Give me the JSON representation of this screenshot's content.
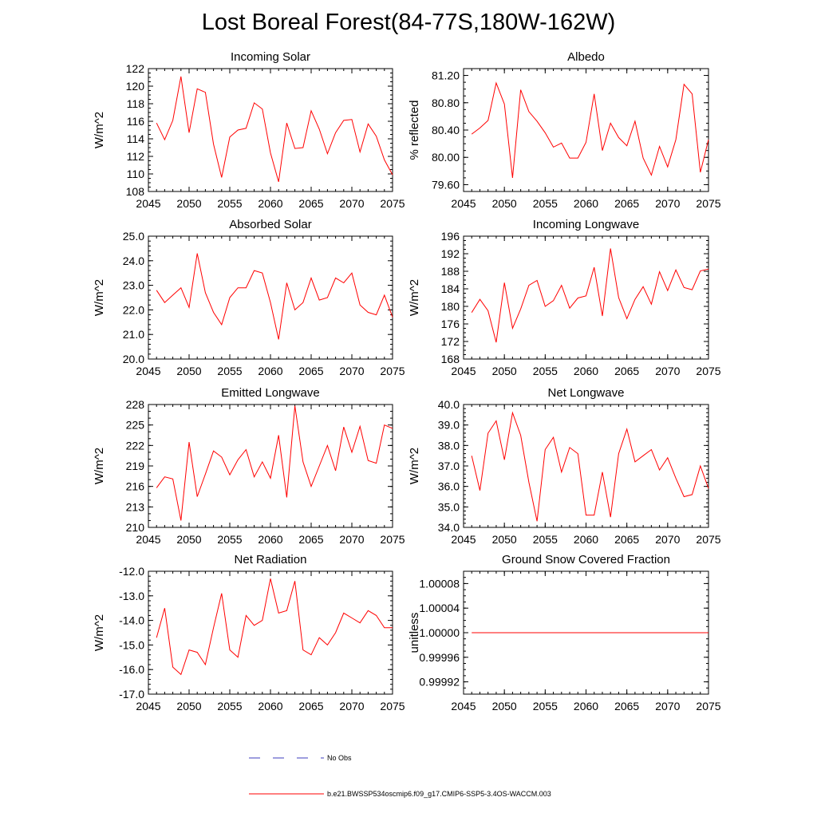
{
  "figure_title": "Lost Boreal Forest(84-77S,180W-162W)",
  "colors": {
    "model": "#ff0000",
    "obs": "#3c3cbe",
    "axis": "#000000"
  },
  "legend": {
    "obs_label": "No Obs",
    "model_label": "b.e21.BWSSP534oscmip6.f09_g17.CMIP6-SSP5-3.4OS-WACCM.003"
  },
  "chart_data": [
    {
      "id": "incoming-solar",
      "type": "line",
      "title": "Incoming Solar",
      "ylabel": "W/m^2",
      "xlim": [
        2045,
        2075
      ],
      "ylim": [
        108,
        122
      ],
      "xticks": [
        2045,
        2050,
        2055,
        2060,
        2065,
        2070,
        2075
      ],
      "xminor": 1,
      "yticks": [
        108,
        110,
        112,
        114,
        116,
        118,
        120,
        122
      ],
      "yticklabels": [
        "108",
        "110",
        "112",
        "114",
        "116",
        "118",
        "120",
        "122"
      ],
      "yminor": 0.5,
      "series": [
        {
          "name": "b.e21.BWSSP534oscmip6.f09_g17.CMIP6-SSP5-3.4OS-WACCM.003",
          "x": [
            2046,
            2047,
            2048,
            2049,
            2050,
            2051,
            2052,
            2053,
            2054,
            2055,
            2056,
            2057,
            2058,
            2059,
            2060,
            2061,
            2062,
            2063,
            2064,
            2065,
            2066,
            2067,
            2068,
            2069,
            2070,
            2071,
            2072,
            2073,
            2074,
            2075
          ],
          "values": [
            115.8,
            113.9,
            116.1,
            121.1,
            114.7,
            119.7,
            119.3,
            113.4,
            109.6,
            114.2,
            115.0,
            115.2,
            118.1,
            117.4,
            112.4,
            109.1,
            115.8,
            112.9,
            113.0,
            117.2,
            115.1,
            112.3,
            114.7,
            116.1,
            116.2,
            112.5,
            115.7,
            114.3,
            111.6,
            109.9
          ]
        }
      ]
    },
    {
      "id": "albedo",
      "type": "line",
      "title": "Albedo",
      "ylabel": "% reflected",
      "xlim": [
        2045,
        2075
      ],
      "ylim": [
        79.5,
        81.3
      ],
      "xticks": [
        2045,
        2050,
        2055,
        2060,
        2065,
        2070,
        2075
      ],
      "xminor": 1,
      "yticks": [
        79.6,
        80.0,
        80.4,
        80.8,
        81.2
      ],
      "yticklabels": [
        "79.60",
        "80.00",
        "80.40",
        "80.80",
        "81.20"
      ],
      "yminor": 0.1,
      "series": [
        {
          "name": "b.e21.BWSSP534oscmip6.f09_g17.CMIP6-SSP5-3.4OS-WACCM.003",
          "x": [
            2046,
            2047,
            2048,
            2049,
            2050,
            2051,
            2052,
            2053,
            2054,
            2055,
            2056,
            2057,
            2058,
            2059,
            2060,
            2061,
            2062,
            2063,
            2064,
            2065,
            2066,
            2067,
            2068,
            2069,
            2070,
            2071,
            2072,
            2073,
            2074,
            2075
          ],
          "values": [
            80.34,
            80.43,
            80.54,
            81.09,
            80.78,
            79.7,
            80.99,
            80.67,
            80.53,
            80.36,
            80.15,
            80.21,
            79.99,
            79.99,
            80.22,
            80.93,
            80.1,
            80.5,
            80.29,
            80.17,
            80.53,
            79.99,
            79.74,
            80.16,
            79.86,
            80.26,
            81.07,
            80.93,
            79.78,
            80.26
          ]
        }
      ]
    },
    {
      "id": "absorbed-solar",
      "type": "line",
      "title": "Absorbed Solar",
      "ylabel": "W/m^2",
      "xlim": [
        2045,
        2075
      ],
      "ylim": [
        20.0,
        25.0
      ],
      "xticks": [
        2045,
        2050,
        2055,
        2060,
        2065,
        2070,
        2075
      ],
      "xminor": 1,
      "yticks": [
        20,
        21,
        22,
        23,
        24,
        25
      ],
      "yticklabels": [
        "20.0",
        "21.0",
        "22.0",
        "23.0",
        "24.0",
        "25.0"
      ],
      "yminor": 0.2,
      "series": [
        {
          "name": "b.e21.BWSSP534oscmip6.f09_g17.CMIP6-SSP5-3.4OS-WACCM.003",
          "x": [
            2046,
            2047,
            2048,
            2049,
            2050,
            2051,
            2052,
            2053,
            2054,
            2055,
            2056,
            2057,
            2058,
            2059,
            2060,
            2061,
            2062,
            2063,
            2064,
            2065,
            2066,
            2067,
            2068,
            2069,
            2070,
            2071,
            2072,
            2073,
            2074,
            2075
          ],
          "values": [
            22.8,
            22.3,
            22.6,
            22.9,
            22.1,
            24.3,
            22.7,
            21.9,
            21.4,
            22.5,
            22.9,
            22.9,
            23.6,
            23.5,
            22.3,
            20.8,
            23.1,
            22.0,
            22.3,
            23.3,
            22.4,
            22.5,
            23.3,
            23.1,
            23.5,
            22.2,
            21.9,
            21.8,
            22.6,
            21.7
          ]
        }
      ]
    },
    {
      "id": "incoming-longwave",
      "type": "line",
      "title": "Incoming Longwave",
      "ylabel": "W/m^2",
      "xlim": [
        2045,
        2075
      ],
      "ylim": [
        168,
        196
      ],
      "xticks": [
        2045,
        2050,
        2055,
        2060,
        2065,
        2070,
        2075
      ],
      "xminor": 1,
      "yticks": [
        168,
        172,
        176,
        180,
        184,
        188,
        192,
        196
      ],
      "yticklabels": [
        "168",
        "172",
        "176",
        "180",
        "184",
        "188",
        "192",
        "196"
      ],
      "yminor": 1,
      "series": [
        {
          "name": "b.e21.BWSSP534oscmip6.f09_g17.CMIP6-SSP5-3.4OS-WACCM.003",
          "x": [
            2046,
            2047,
            2048,
            2049,
            2050,
            2051,
            2052,
            2053,
            2054,
            2055,
            2056,
            2057,
            2058,
            2059,
            2060,
            2061,
            2062,
            2063,
            2064,
            2065,
            2066,
            2067,
            2068,
            2069,
            2070,
            2071,
            2072,
            2073,
            2074,
            2075
          ],
          "values": [
            178.6,
            181.6,
            179.0,
            171.8,
            185.4,
            175.0,
            179.4,
            184.8,
            185.9,
            180.0,
            181.3,
            184.8,
            179.6,
            181.9,
            182.4,
            188.9,
            177.8,
            193.2,
            182.0,
            177.2,
            181.6,
            184.5,
            180.5,
            187.9,
            183.6,
            188.3,
            184.3,
            183.8,
            188.1,
            188.5
          ]
        }
      ]
    },
    {
      "id": "emitted-longwave",
      "type": "line",
      "title": "Emitted Longwave",
      "ylabel": "W/m^2",
      "xlim": [
        2045,
        2075
      ],
      "ylim": [
        210,
        228
      ],
      "xticks": [
        2045,
        2050,
        2055,
        2060,
        2065,
        2070,
        2075
      ],
      "xminor": 1,
      "yticks": [
        210,
        213,
        216,
        219,
        222,
        225,
        228
      ],
      "yticklabels": [
        "210",
        "213",
        "216",
        "219",
        "222",
        "225",
        "228"
      ],
      "yminor": 1,
      "series": [
        {
          "name": "b.e21.BWSSP534oscmip6.f09_g17.CMIP6-SSP5-3.4OS-WACCM.003",
          "x": [
            2046,
            2047,
            2048,
            2049,
            2050,
            2051,
            2052,
            2053,
            2054,
            2055,
            2056,
            2057,
            2058,
            2059,
            2060,
            2061,
            2062,
            2063,
            2064,
            2065,
            2066,
            2067,
            2068,
            2069,
            2070,
            2071,
            2072,
            2073,
            2074,
            2075
          ],
          "values": [
            215.8,
            217.4,
            217.1,
            211.0,
            222.5,
            214.5,
            217.8,
            221.2,
            220.3,
            217.7,
            219.9,
            221.4,
            217.4,
            219.6,
            217.2,
            223.5,
            214.4,
            227.8,
            219.6,
            216.0,
            219.0,
            222.0,
            218.3,
            224.7,
            221.0,
            224.8,
            219.8,
            219.4,
            225.0,
            224.5
          ]
        }
      ]
    },
    {
      "id": "net-longwave",
      "type": "line",
      "title": "Net Longwave",
      "ylabel": "W/m^2",
      "xlim": [
        2045,
        2075
      ],
      "ylim": [
        34.0,
        40.0
      ],
      "xticks": [
        2045,
        2050,
        2055,
        2060,
        2065,
        2070,
        2075
      ],
      "xminor": 1,
      "yticks": [
        34,
        35,
        36,
        37,
        38,
        39,
        40
      ],
      "yticklabels": [
        "34.0",
        "35.0",
        "36.0",
        "37.0",
        "38.0",
        "39.0",
        "40.0"
      ],
      "yminor": 0.2,
      "series": [
        {
          "name": "b.e21.BWSSP534oscmip6.f09_g17.CMIP6-SSP5-3.4OS-WACCM.003",
          "x": [
            2046,
            2047,
            2048,
            2049,
            2050,
            2051,
            2052,
            2053,
            2054,
            2055,
            2056,
            2057,
            2058,
            2059,
            2060,
            2061,
            2062,
            2063,
            2064,
            2065,
            2066,
            2067,
            2068,
            2069,
            2070,
            2071,
            2072,
            2073,
            2074,
            2075
          ],
          "values": [
            37.5,
            35.8,
            38.6,
            39.2,
            37.3,
            39.6,
            38.5,
            36.2,
            34.3,
            37.8,
            38.4,
            36.7,
            37.9,
            37.6,
            34.6,
            34.6,
            36.7,
            34.5,
            37.6,
            38.8,
            37.2,
            37.5,
            37.8,
            36.8,
            37.4,
            36.4,
            35.5,
            35.6,
            37.0,
            35.9
          ]
        }
      ]
    },
    {
      "id": "net-radiation",
      "type": "line",
      "title": "Net Radiation",
      "ylabel": "W/m^2",
      "xlim": [
        2045,
        2075
      ],
      "ylim": [
        -17.0,
        -12.0
      ],
      "xticks": [
        2045,
        2050,
        2055,
        2060,
        2065,
        2070,
        2075
      ],
      "xminor": 1,
      "yticks": [
        -17,
        -16,
        -15,
        -14,
        -13,
        -12
      ],
      "yticklabels": [
        "-17.0",
        "-16.0",
        "-15.0",
        "-14.0",
        "-13.0",
        "-12.0"
      ],
      "yminor": 0.2,
      "series": [
        {
          "name": "b.e21.BWSSP534oscmip6.f09_g17.CMIP6-SSP5-3.4OS-WACCM.003",
          "x": [
            2046,
            2047,
            2048,
            2049,
            2050,
            2051,
            2052,
            2053,
            2054,
            2055,
            2056,
            2057,
            2058,
            2059,
            2060,
            2061,
            2062,
            2063,
            2064,
            2065,
            2066,
            2067,
            2068,
            2069,
            2070,
            2071,
            2072,
            2073,
            2074,
            2075
          ],
          "values": [
            -14.7,
            -13.5,
            -15.9,
            -16.2,
            -15.2,
            -15.3,
            -15.8,
            -14.3,
            -12.9,
            -15.2,
            -15.5,
            -13.8,
            -14.2,
            -14.0,
            -12.3,
            -13.7,
            -13.6,
            -12.4,
            -15.2,
            -15.4,
            -14.7,
            -15.0,
            -14.5,
            -13.7,
            -13.9,
            -14.1,
            -13.6,
            -13.8,
            -14.3,
            -14.3
          ]
        }
      ]
    },
    {
      "id": "ground-snow-covered-fraction",
      "type": "line",
      "title": "Ground Snow Covered Fraction",
      "ylabel": "unitless",
      "xlim": [
        2045,
        2075
      ],
      "ylim": [
        0.9999,
        1.0001
      ],
      "xticks": [
        2045,
        2050,
        2055,
        2060,
        2065,
        2070,
        2075
      ],
      "xminor": 1,
      "yticks": [
        0.99992,
        0.99996,
        1.0,
        1.00004,
        1.00008
      ],
      "yticklabels": [
        "0.99992",
        "0.99996",
        "1.00000",
        "1.00004",
        "1.00008"
      ],
      "yminor": 1e-05,
      "series": [
        {
          "name": "b.e21.BWSSP534oscmip6.f09_g17.CMIP6-SSP5-3.4OS-WACCM.003",
          "x": [
            2046,
            2075
          ],
          "values": [
            1.0,
            1.0
          ]
        }
      ]
    }
  ]
}
